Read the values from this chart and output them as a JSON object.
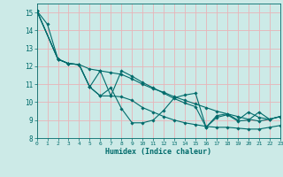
{
  "xlabel": "Humidex (Indice chaleur)",
  "xlim": [
    0,
    23
  ],
  "ylim": [
    8,
    15.5
  ],
  "yticks": [
    8,
    9,
    10,
    11,
    12,
    13,
    14,
    15
  ],
  "xticks": [
    0,
    1,
    2,
    3,
    4,
    5,
    6,
    7,
    8,
    9,
    10,
    11,
    12,
    13,
    14,
    15,
    16,
    17,
    18,
    19,
    20,
    21,
    22,
    23
  ],
  "bg_color": "#cceae7",
  "grid_color": "#e8b4b8",
  "line_color": "#006b6b",
  "lines": [
    {
      "x": [
        0,
        1,
        2,
        3,
        4,
        5,
        6,
        7,
        8,
        9,
        10,
        11,
        12,
        13,
        14,
        15,
        16,
        17,
        18,
        19,
        20,
        21,
        22,
        23
      ],
      "y": [
        15.1,
        14.35,
        12.4,
        12.15,
        12.1,
        10.85,
        10.35,
        10.8,
        9.65,
        8.85,
        8.85,
        9.0,
        9.55,
        10.25,
        10.4,
        10.5,
        8.6,
        9.25,
        9.35,
        9.0,
        9.45,
        9.15,
        9.05,
        9.2
      ]
    },
    {
      "x": [
        0,
        2,
        3,
        4,
        5,
        6,
        7,
        8,
        9,
        10,
        11,
        12,
        13,
        14,
        15,
        16,
        17,
        18,
        19,
        20,
        21,
        22,
        23
      ],
      "y": [
        15.1,
        12.4,
        12.15,
        12.1,
        11.85,
        11.75,
        11.65,
        11.55,
        11.3,
        11.0,
        10.75,
        10.55,
        10.3,
        10.1,
        9.9,
        9.7,
        9.5,
        9.35,
        9.2,
        9.05,
        8.95,
        9.05,
        9.2
      ]
    },
    {
      "x": [
        0,
        2,
        3,
        4,
        5,
        6,
        7,
        8,
        9,
        10,
        11,
        12,
        13,
        14,
        15,
        16,
        17,
        18,
        19,
        20,
        21,
        22,
        23
      ],
      "y": [
        15.1,
        12.4,
        12.15,
        12.1,
        10.85,
        10.35,
        10.35,
        10.3,
        10.1,
        9.7,
        9.45,
        9.2,
        9.0,
        8.85,
        8.75,
        8.65,
        8.6,
        8.6,
        8.55,
        8.5,
        8.5,
        8.6,
        8.7
      ]
    },
    {
      "x": [
        0,
        2,
        3,
        4,
        5,
        6,
        7,
        8,
        9,
        10,
        11,
        12,
        13,
        14,
        15,
        16,
        17,
        18,
        19,
        20,
        21,
        22,
        23
      ],
      "y": [
        15.1,
        12.4,
        12.15,
        12.1,
        10.85,
        11.75,
        10.35,
        11.75,
        11.45,
        11.1,
        10.8,
        10.5,
        10.2,
        9.95,
        9.75,
        8.6,
        9.15,
        9.3,
        8.95,
        9.0,
        9.45,
        9.05,
        9.2
      ]
    }
  ]
}
